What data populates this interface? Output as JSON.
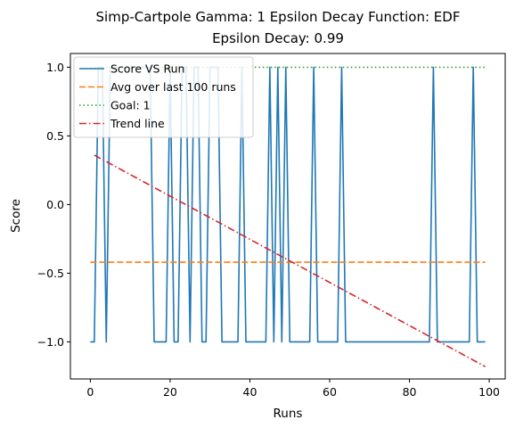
{
  "chart_data": {
    "type": "line",
    "title": "Simp-Cartpole Gamma: 1 Epsilon Decay Function: EDF",
    "subtitle": "Epsilon Decay: 0.99",
    "xlabel": "Runs",
    "ylabel": "Score",
    "xlim": [
      -5,
      104
    ],
    "ylim": [
      -1.27,
      1.1
    ],
    "xticks": [
      0,
      20,
      40,
      60,
      80,
      100
    ],
    "yticks": [
      -1.0,
      -0.5,
      0.0,
      0.5,
      1.0
    ],
    "xtick_labels": [
      "0",
      "20",
      "40",
      "60",
      "80",
      "100"
    ],
    "ytick_labels": [
      "−1.0",
      "−0.5",
      "0.0",
      "0.5",
      "1.0"
    ],
    "grid": false,
    "legend_position": "top-left",
    "series": [
      {
        "name": "Score VS Run",
        "color": "#1f77b4",
        "style": "solid",
        "x": [
          0,
          1,
          2,
          3,
          4,
          5,
          6,
          7,
          8,
          9,
          10,
          11,
          12,
          13,
          14,
          15,
          16,
          17,
          18,
          19,
          20,
          21,
          22,
          23,
          24,
          25,
          26,
          27,
          28,
          29,
          30,
          31,
          32,
          33,
          34,
          35,
          36,
          37,
          38,
          39,
          40,
          41,
          42,
          43,
          44,
          45,
          46,
          47,
          48,
          49,
          50,
          51,
          52,
          53,
          54,
          55,
          56,
          57,
          58,
          59,
          60,
          61,
          62,
          63,
          64,
          65,
          66,
          67,
          68,
          69,
          70,
          71,
          72,
          73,
          74,
          75,
          76,
          77,
          78,
          79,
          80,
          81,
          82,
          83,
          84,
          85,
          86,
          87,
          88,
          89,
          90,
          91,
          92,
          93,
          94,
          95,
          96,
          97,
          98,
          99
        ],
        "y": [
          -1,
          -1,
          1,
          1,
          -1,
          1,
          1,
          1,
          1,
          1,
          1,
          1,
          1,
          1,
          1,
          1,
          -1,
          -1,
          -1,
          -1,
          1,
          -1,
          -1,
          1,
          1,
          -1,
          1,
          1,
          -1,
          -1,
          1,
          1,
          1,
          -1,
          -1,
          -1,
          -1,
          -1,
          1,
          -1,
          -1,
          -1,
          -1,
          -1,
          -1,
          1,
          -1,
          1,
          -1,
          1,
          -1,
          -1,
          -1,
          -1,
          -1,
          -1,
          1,
          -1,
          -1,
          -1,
          -1,
          -1,
          -1,
          1,
          -1,
          -1,
          -1,
          -1,
          -1,
          -1,
          -1,
          -1,
          -1,
          -1,
          -1,
          -1,
          -1,
          -1,
          -1,
          -1,
          -1,
          -1,
          -1,
          -1,
          -1,
          -1,
          1,
          -1,
          -1,
          -1,
          -1,
          -1,
          -1,
          -1,
          -1,
          -1,
          1,
          -1,
          -1,
          -1
        ]
      },
      {
        "name": "Avg over last 100 runs",
        "color": "#ff7f0e",
        "style": "dashed",
        "x": [
          0,
          99
        ],
        "y": [
          -0.42,
          -0.42
        ]
      },
      {
        "name": "Goal: 1",
        "color": "#2ca02c",
        "style": "dotted",
        "x": [
          0,
          99
        ],
        "y": [
          1,
          1
        ]
      },
      {
        "name": "Trend line",
        "color": "#d62728",
        "style": "dashdot",
        "x": [
          1,
          99
        ],
        "y": [
          0.36,
          -1.18
        ]
      }
    ]
  }
}
